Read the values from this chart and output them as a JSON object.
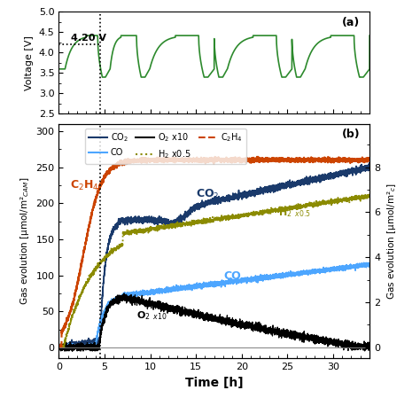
{
  "title_a": "(a)",
  "title_b": "(b)",
  "voltage_label": "Voltage [V]",
  "time_label": "Time [h]",
  "voltage_ylim": [
    2.5,
    5.0
  ],
  "voltage_yticks": [
    2.5,
    3.0,
    3.5,
    4.0,
    4.5,
    5.0
  ],
  "time_xlim": [
    0,
    34
  ],
  "xticks": [
    0,
    5,
    10,
    15,
    20,
    25,
    30
  ],
  "vline_x": 4.5,
  "ref_voltage": 4.2,
  "ref_label": "4.20 V",
  "voltage_color": "#2d8a2d",
  "co2_color": "#1a3a6b",
  "co_color": "#4da6ff",
  "o2_color": "#000000",
  "h2_color": "#8b8b00",
  "c2h4_color": "#cc4400"
}
